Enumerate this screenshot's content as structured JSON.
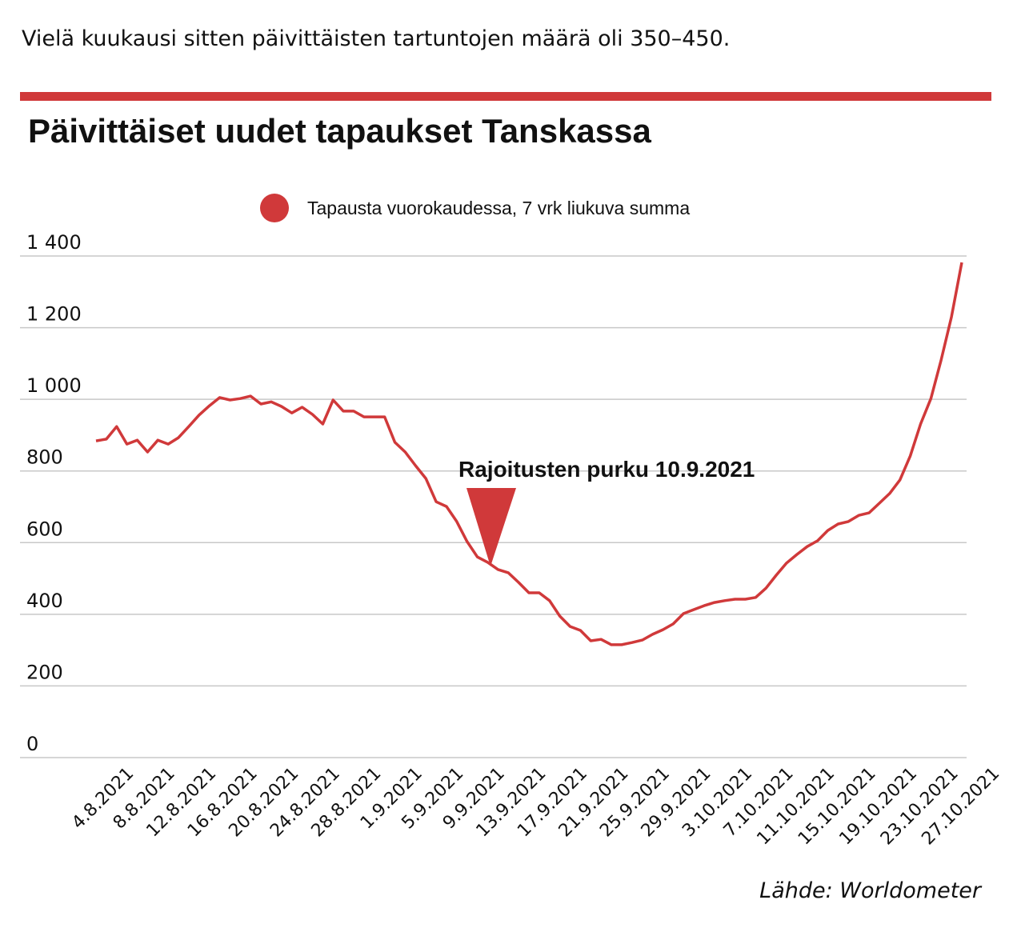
{
  "chart_data": {
    "type": "line",
    "subtitle": "Vielä kuukausi sitten päivittäisten tartuntojen määrä oli 350–450.",
    "title": "Päivittäiset uudet tapaukset Tanskassa",
    "annotation": "Rajoitusten purku 10.9.2021",
    "source": "Lähde: Worldometer",
    "categories": [
      "4.8.2021",
      null,
      null,
      null,
      "8.8.2021",
      null,
      null,
      null,
      "12.8.2021",
      null,
      null,
      null,
      "16.8.2021",
      null,
      null,
      null,
      "20.8.2021",
      null,
      null,
      null,
      "24.8.2021",
      null,
      null,
      null,
      "28.8.2021",
      null,
      null,
      null,
      "1.9.2021",
      null,
      null,
      null,
      "5.9.2021",
      null,
      null,
      null,
      "9.9.2021",
      null,
      null,
      null,
      "13.9.2021",
      null,
      null,
      null,
      "17.9.2021",
      null,
      null,
      null,
      "21.9.2021",
      null,
      null,
      null,
      "25.9.2021",
      null,
      null,
      null,
      "29.9.2021",
      null,
      null,
      null,
      "3.10.2021",
      null,
      null,
      null,
      "7.10.2021",
      null,
      null,
      null,
      "11.10.2021",
      null,
      null,
      null,
      "15.10.2021",
      null,
      null,
      null,
      "19.10.2021",
      null,
      null,
      null,
      "23.10.2021",
      null,
      null,
      null,
      "27.10.2021"
    ],
    "series": [
      {
        "name": "Tapausta vuorokaudessa, 7 vrk liukuva summa",
        "color": "#d0393a",
        "values": [
          884,
          889,
          924,
          875,
          886,
          853,
          886,
          875,
          893,
          924,
          956,
          982,
          1005,
          998,
          1002,
          1009,
          987,
          993,
          980,
          962,
          978,
          958,
          931,
          998,
          967,
          967,
          951,
          951,
          951,
          880,
          853,
          815,
          779,
          714,
          701,
          659,
          603,
          560,
          545,
          525,
          516,
          489,
          460,
          460,
          438,
          395,
          366,
          355,
          326,
          330,
          315,
          315,
          321,
          328,
          344,
          357,
          373,
          402,
          413,
          424,
          433,
          438,
          442,
          442,
          447,
          473,
          509,
          543,
          567,
          589,
          605,
          634,
          652,
          659,
          676,
          683,
          710,
          737,
          775,
          842,
          931,
          1002,
          1110,
          1230,
          1382
        ]
      }
    ],
    "ylim": [
      0,
      1400
    ],
    "yticks": [
      0,
      200,
      400,
      600,
      800,
      {
        "value": 1000,
        "label": "1 000"
      },
      {
        "value": 1200,
        "label": "1 200"
      },
      {
        "value": 1400,
        "label": "1 400"
      }
    ],
    "grid": true,
    "legend": "top"
  }
}
